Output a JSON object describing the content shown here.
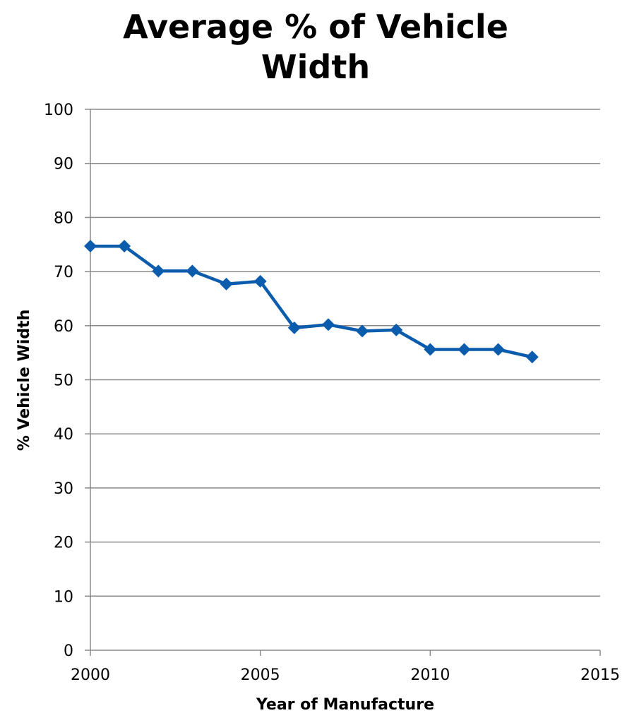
{
  "chart_data": {
    "type": "line",
    "title_lines": [
      "Average % of Vehicle",
      "Width"
    ],
    "xlabel": "Year of Manufacture",
    "ylabel": "% Vehicle Width",
    "xlim": [
      2000,
      2015
    ],
    "ylim": [
      0,
      100
    ],
    "x_ticks": [
      2000,
      2005,
      2010,
      2015
    ],
    "y_ticks": [
      0,
      10,
      20,
      30,
      40,
      50,
      60,
      70,
      80,
      90,
      100
    ],
    "grid": "horizontal",
    "legend": "none",
    "series": [
      {
        "color": "#0B5CAD",
        "marker": "diamond",
        "points": [
          {
            "x": 2000,
            "y": 74.7
          },
          {
            "x": 2001,
            "y": 74.7
          },
          {
            "x": 2002,
            "y": 70.1
          },
          {
            "x": 2003,
            "y": 70.1
          },
          {
            "x": 2004,
            "y": 67.7
          },
          {
            "x": 2005,
            "y": 68.2
          },
          {
            "x": 2006,
            "y": 59.6
          },
          {
            "x": 2007,
            "y": 60.2
          },
          {
            "x": 2008,
            "y": 59.0
          },
          {
            "x": 2009,
            "y": 59.2
          },
          {
            "x": 2010,
            "y": 55.6
          },
          {
            "x": 2011,
            "y": 55.6
          },
          {
            "x": 2012,
            "y": 55.6
          },
          {
            "x": 2013,
            "y": 54.2
          }
        ]
      }
    ]
  }
}
